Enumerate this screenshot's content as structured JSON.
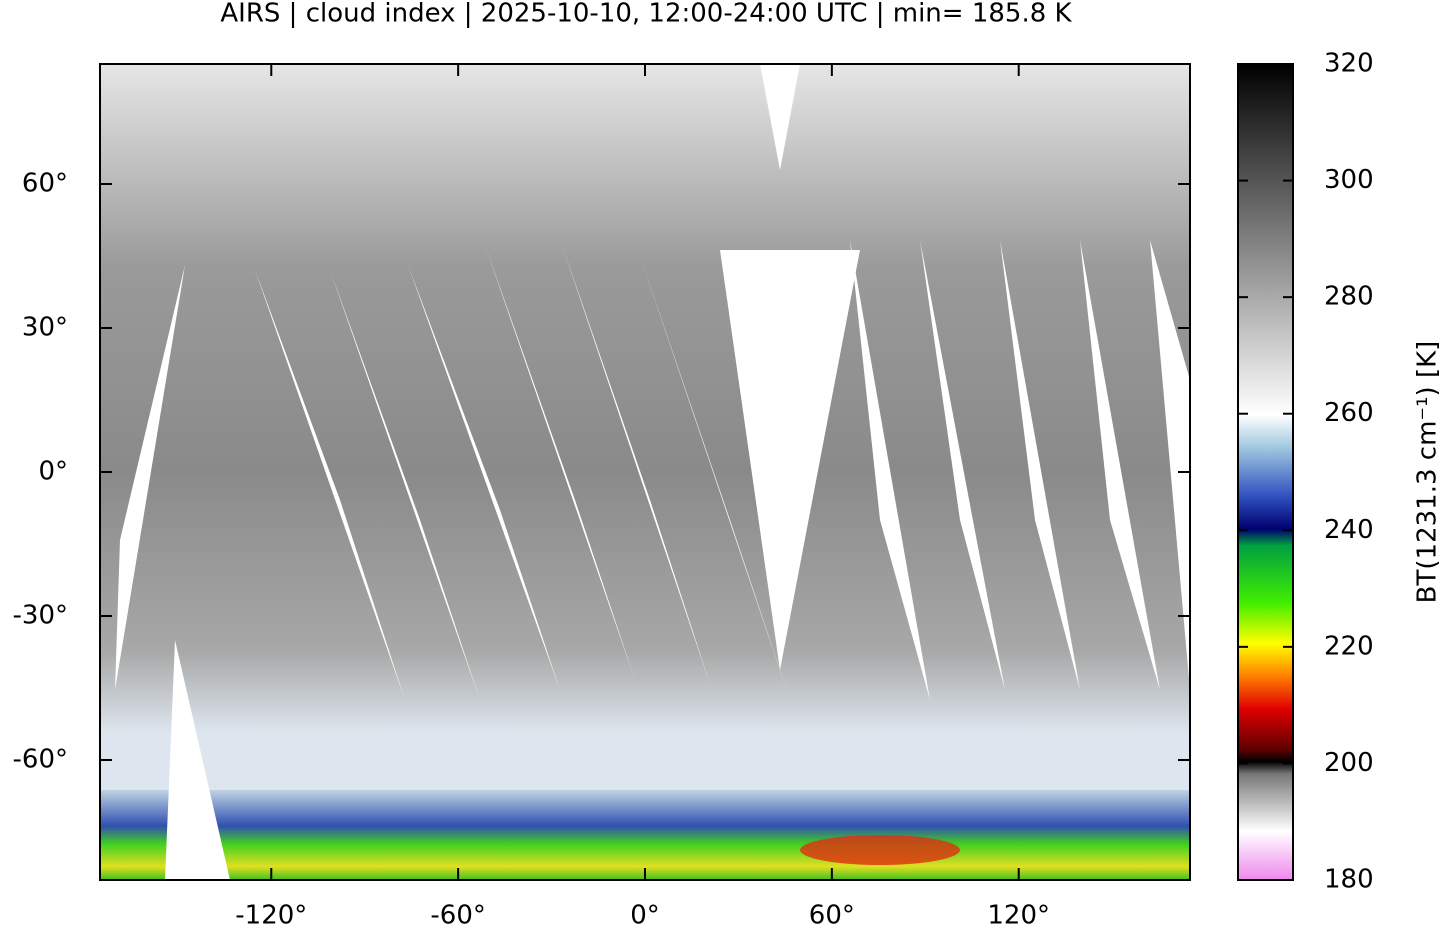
{
  "title": "AIRS | cloud index | 2025-10-10, 12:00-24:00 UTC | min= 185.8 K",
  "map": {
    "xlim": [
      -175,
      175
    ],
    "ylim": [
      -85,
      85
    ],
    "xticks": [
      {
        "value": -120,
        "label": "-120°"
      },
      {
        "value": -60,
        "label": "-60°"
      },
      {
        "value": 0,
        "label": "0°"
      },
      {
        "value": 60,
        "label": "60°"
      },
      {
        "value": 120,
        "label": "120°"
      }
    ],
    "yticks": [
      {
        "value": 60,
        "label": "60°"
      },
      {
        "value": 30,
        "label": "30°"
      },
      {
        "value": 0,
        "label": "0°"
      },
      {
        "value": -30,
        "label": "-30°"
      },
      {
        "value": -60,
        "label": "-60°"
      }
    ]
  },
  "colorbar": {
    "label": "BT(1231.3 cm⁻¹) [K]",
    "lim": [
      180,
      320
    ],
    "ticks": [
      180,
      200,
      220,
      240,
      260,
      280,
      300,
      320
    ]
  }
}
